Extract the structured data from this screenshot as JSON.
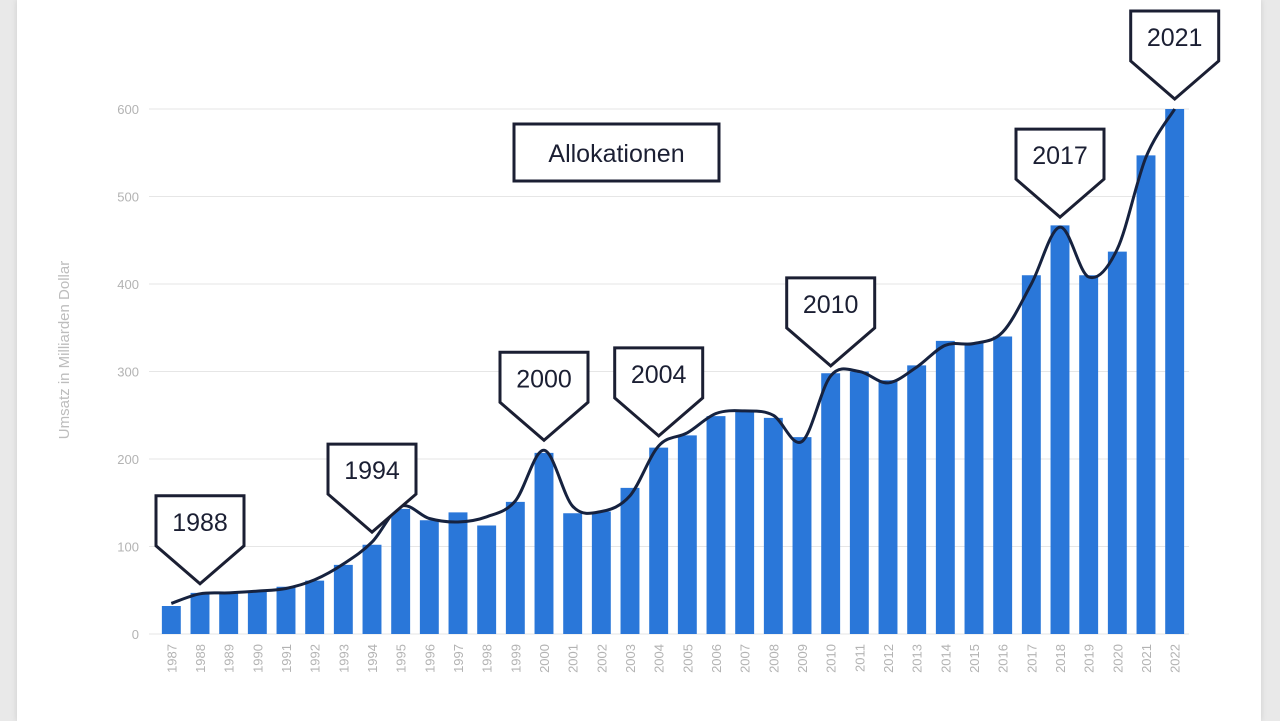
{
  "chart_data": {
    "type": "bar",
    "categories": [
      "1987",
      "1988",
      "1989",
      "1990",
      "1991",
      "1992",
      "1993",
      "1994",
      "1995",
      "1996",
      "1997",
      "1998",
      "1999",
      "2000",
      "2001",
      "2002",
      "2003",
      "2004",
      "2005",
      "2006",
      "2007",
      "2008",
      "2009",
      "2010",
      "2011",
      "2012",
      "2013",
      "2014",
      "2015",
      "2016",
      "2017",
      "2018",
      "2019",
      "2020",
      "2021",
      "2022"
    ],
    "values": [
      32,
      47,
      47,
      49,
      54,
      61,
      79,
      102,
      143,
      130,
      139,
      124,
      151,
      207,
      138,
      140,
      167,
      213,
      227,
      249,
      255,
      247,
      225,
      298,
      300,
      290,
      307,
      335,
      333,
      340,
      410,
      467,
      410,
      437,
      547,
      600
    ],
    "ylabel": "Umsatz in Milliarden Dollar",
    "xlabel": "",
    "title": "",
    "ylim": [
      0,
      600
    ],
    "yticks": [
      0,
      100,
      200,
      300,
      400,
      500,
      600
    ],
    "bar_color": "#2a77d9",
    "trend_line": {
      "color": "#16223f",
      "values": [
        35,
        46,
        47,
        49,
        52,
        62,
        80,
        105,
        146,
        132,
        128,
        134,
        152,
        210,
        146,
        140,
        158,
        215,
        230,
        252,
        255,
        250,
        220,
        295,
        300,
        287,
        305,
        330,
        332,
        345,
        400,
        465,
        408,
        440,
        545,
        600
      ]
    },
    "annotations": [
      {
        "label": "Allokationen",
        "shape": "box"
      },
      {
        "label": "1988",
        "category": "1988",
        "shape": "arrow-down"
      },
      {
        "label": "1994",
        "category": "1994",
        "shape": "arrow-down"
      },
      {
        "label": "2000",
        "category": "2000",
        "shape": "arrow-down"
      },
      {
        "label": "2004",
        "category": "2004",
        "shape": "arrow-down"
      },
      {
        "label": "2010",
        "category": "2010",
        "shape": "arrow-down"
      },
      {
        "label": "2017",
        "category": "2018",
        "shape": "arrow-down"
      },
      {
        "label": "2021",
        "category": "2022",
        "shape": "arrow-down"
      }
    ]
  }
}
